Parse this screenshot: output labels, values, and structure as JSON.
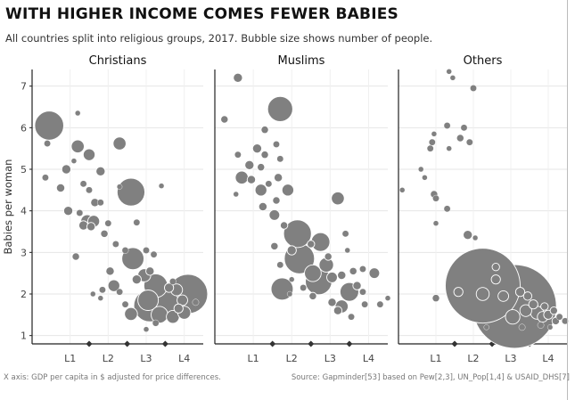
{
  "title": "WITH HIGHER INCOME COMES FEWER BABIES",
  "subtitle": "All countries split into religious groups, 2017. Bubble size shows number of people.",
  "footer": {
    "x_axis_note": "X axis: GDP per capita in $ adjusted for price differences.",
    "source": "Source: Gapminder[53] based on Pew[2,3], UN_Pop[1,4] & USAID_DHS[7]"
  },
  "colors": {
    "bubble": "#808080",
    "bubble_outline": "#ffffff",
    "grid": "#e6e6e6",
    "axis": "#222222",
    "marker": "#333333"
  },
  "chart_data": [
    {
      "type": "scatter",
      "panel": "Christians",
      "title": "Christians",
      "xlabel": "",
      "ylabel": "Babies per woman",
      "xlim": [
        0,
        4.5
      ],
      "ylim": [
        0.8,
        7.4
      ],
      "yticks": [
        1,
        2,
        3,
        4,
        5,
        6,
        7
      ],
      "xticks": [
        {
          "x": 1,
          "label": "L1"
        },
        {
          "x": 2,
          "label": "L2"
        },
        {
          "x": 3,
          "label": "L3"
        },
        {
          "x": 4,
          "label": "L4"
        }
      ],
      "level_markers": [
        1.5,
        2.5,
        3.5
      ],
      "grid": true,
      "points": [
        {
          "x": 0.45,
          "y": 6.05,
          "s": 60
        },
        {
          "x": 0.4,
          "y": 5.62,
          "s": 3
        },
        {
          "x": 1.2,
          "y": 6.35,
          "s": 2
        },
        {
          "x": 1.2,
          "y": 5.55,
          "s": 12
        },
        {
          "x": 1.5,
          "y": 5.35,
          "s": 10
        },
        {
          "x": 1.1,
          "y": 5.2,
          "s": 2
        },
        {
          "x": 2.3,
          "y": 5.62,
          "s": 12
        },
        {
          "x": 0.9,
          "y": 5.0,
          "s": 6
        },
        {
          "x": 1.8,
          "y": 4.95,
          "s": 6
        },
        {
          "x": 0.35,
          "y": 4.8,
          "s": 3
        },
        {
          "x": 0.75,
          "y": 4.55,
          "s": 5
        },
        {
          "x": 1.35,
          "y": 4.65,
          "s": 3
        },
        {
          "x": 1.5,
          "y": 4.5,
          "s": 3
        },
        {
          "x": 2.6,
          "y": 4.45,
          "s": 55
        },
        {
          "x": 2.3,
          "y": 4.58,
          "s": 2
        },
        {
          "x": 1.65,
          "y": 4.2,
          "s": 5
        },
        {
          "x": 1.8,
          "y": 4.2,
          "s": 3
        },
        {
          "x": 0.95,
          "y": 4.0,
          "s": 6
        },
        {
          "x": 1.45,
          "y": 3.75,
          "s": 12
        },
        {
          "x": 1.62,
          "y": 3.75,
          "s": 10
        },
        {
          "x": 1.35,
          "y": 3.65,
          "s": 6
        },
        {
          "x": 1.55,
          "y": 3.62,
          "s": 5
        },
        {
          "x": 2.0,
          "y": 3.7,
          "s": 3
        },
        {
          "x": 1.25,
          "y": 3.95,
          "s": 3
        },
        {
          "x": 2.75,
          "y": 3.72,
          "s": 3
        },
        {
          "x": 3.4,
          "y": 4.6,
          "s": 2
        },
        {
          "x": 1.15,
          "y": 2.9,
          "s": 4
        },
        {
          "x": 1.9,
          "y": 3.45,
          "s": 4
        },
        {
          "x": 2.2,
          "y": 3.2,
          "s": 3
        },
        {
          "x": 2.45,
          "y": 3.05,
          "s": 3
        },
        {
          "x": 2.65,
          "y": 2.85,
          "s": 35
        },
        {
          "x": 3.0,
          "y": 3.05,
          "s": 3
        },
        {
          "x": 3.2,
          "y": 2.95,
          "s": 3
        },
        {
          "x": 2.05,
          "y": 2.55,
          "s": 5
        },
        {
          "x": 2.15,
          "y": 2.2,
          "s": 10
        },
        {
          "x": 2.3,
          "y": 2.05,
          "s": 3
        },
        {
          "x": 1.85,
          "y": 2.1,
          "s": 3
        },
        {
          "x": 1.8,
          "y": 1.9,
          "s": 2
        },
        {
          "x": 2.75,
          "y": 2.35,
          "s": 6
        },
        {
          "x": 2.95,
          "y": 2.45,
          "s": 12
        },
        {
          "x": 3.1,
          "y": 2.55,
          "s": 5
        },
        {
          "x": 3.25,
          "y": 2.2,
          "s": 40
        },
        {
          "x": 3.05,
          "y": 1.85,
          "s": 30
        },
        {
          "x": 3.1,
          "y": 1.72,
          "s": 75
        },
        {
          "x": 3.5,
          "y": 1.8,
          "s": 50
        },
        {
          "x": 3.35,
          "y": 1.5,
          "s": 20
        },
        {
          "x": 3.7,
          "y": 1.45,
          "s": 12
        },
        {
          "x": 3.6,
          "y": 2.15,
          "s": 6
        },
        {
          "x": 3.8,
          "y": 2.1,
          "s": 10
        },
        {
          "x": 3.95,
          "y": 1.85,
          "s": 8
        },
        {
          "x": 4.0,
          "y": 1.55,
          "s": 12
        },
        {
          "x": 4.1,
          "y": 2.0,
          "s": 110
        },
        {
          "x": 3.85,
          "y": 1.65,
          "s": 6
        },
        {
          "x": 2.6,
          "y": 1.52,
          "s": 12
        },
        {
          "x": 3.25,
          "y": 1.3,
          "s": 3
        },
        {
          "x": 3.0,
          "y": 1.15,
          "s": 2
        },
        {
          "x": 4.3,
          "y": 1.8,
          "s": 3
        },
        {
          "x": 3.7,
          "y": 2.3,
          "s": 3
        },
        {
          "x": 2.45,
          "y": 1.75,
          "s": 3
        },
        {
          "x": 1.6,
          "y": 2.0,
          "s": 2
        }
      ]
    },
    {
      "type": "scatter",
      "panel": "Muslims",
      "title": "Muslims",
      "xlabel": "",
      "ylabel": "",
      "xlim": [
        0,
        4.5
      ],
      "ylim": [
        0.8,
        7.4
      ],
      "yticks": [
        1,
        2,
        3,
        4,
        5,
        6,
        7
      ],
      "xticks": [
        {
          "x": 1,
          "label": "L1"
        },
        {
          "x": 2,
          "label": "L2"
        },
        {
          "x": 3,
          "label": "L3"
        },
        {
          "x": 4,
          "label": "L4"
        }
      ],
      "level_markers": [
        1.5,
        2.5,
        3.5
      ],
      "grid": true,
      "points": [
        {
          "x": 0.6,
          "y": 7.2,
          "s": 6
        },
        {
          "x": 0.25,
          "y": 6.2,
          "s": 4
        },
        {
          "x": 1.7,
          "y": 6.45,
          "s": 45
        },
        {
          "x": 1.3,
          "y": 5.95,
          "s": 4
        },
        {
          "x": 1.6,
          "y": 5.6,
          "s": 3
        },
        {
          "x": 1.1,
          "y": 5.5,
          "s": 6
        },
        {
          "x": 1.3,
          "y": 5.35,
          "s": 4
        },
        {
          "x": 0.6,
          "y": 5.35,
          "s": 3
        },
        {
          "x": 1.7,
          "y": 5.25,
          "s": 3
        },
        {
          "x": 0.9,
          "y": 5.1,
          "s": 6
        },
        {
          "x": 1.2,
          "y": 5.05,
          "s": 4
        },
        {
          "x": 0.7,
          "y": 4.8,
          "s": 12
        },
        {
          "x": 0.95,
          "y": 4.75,
          "s": 5
        },
        {
          "x": 1.65,
          "y": 4.8,
          "s": 5
        },
        {
          "x": 1.4,
          "y": 4.65,
          "s": 3
        },
        {
          "x": 1.2,
          "y": 4.5,
          "s": 10
        },
        {
          "x": 1.9,
          "y": 4.5,
          "s": 10
        },
        {
          "x": 0.55,
          "y": 4.4,
          "s": 2
        },
        {
          "x": 1.6,
          "y": 4.25,
          "s": 4
        },
        {
          "x": 1.25,
          "y": 4.1,
          "s": 5
        },
        {
          "x": 1.55,
          "y": 3.9,
          "s": 8
        },
        {
          "x": 3.2,
          "y": 4.3,
          "s": 12
        },
        {
          "x": 1.8,
          "y": 3.65,
          "s": 4
        },
        {
          "x": 2.15,
          "y": 3.45,
          "s": 55
        },
        {
          "x": 1.55,
          "y": 3.15,
          "s": 4
        },
        {
          "x": 2.0,
          "y": 3.05,
          "s": 6
        },
        {
          "x": 2.2,
          "y": 2.85,
          "s": 65
        },
        {
          "x": 2.75,
          "y": 3.25,
          "s": 25
        },
        {
          "x": 2.5,
          "y": 3.2,
          "s": 4
        },
        {
          "x": 2.95,
          "y": 2.9,
          "s": 4
        },
        {
          "x": 3.4,
          "y": 3.45,
          "s": 3
        },
        {
          "x": 3.45,
          "y": 3.05,
          "s": 2
        },
        {
          "x": 2.9,
          "y": 2.7,
          "s": 15
        },
        {
          "x": 1.7,
          "y": 2.7,
          "s": 3
        },
        {
          "x": 2.55,
          "y": 2.5,
          "s": 20
        },
        {
          "x": 2.7,
          "y": 2.3,
          "s": 50
        },
        {
          "x": 3.05,
          "y": 2.4,
          "s": 8
        },
        {
          "x": 3.3,
          "y": 2.45,
          "s": 5
        },
        {
          "x": 3.6,
          "y": 2.55,
          "s": 4
        },
        {
          "x": 3.85,
          "y": 2.6,
          "s": 3
        },
        {
          "x": 4.15,
          "y": 2.5,
          "s": 8
        },
        {
          "x": 3.7,
          "y": 2.2,
          "s": 5
        },
        {
          "x": 1.75,
          "y": 2.12,
          "s": 35
        },
        {
          "x": 2.3,
          "y": 2.15,
          "s": 3
        },
        {
          "x": 2.55,
          "y": 1.95,
          "s": 4
        },
        {
          "x": 3.5,
          "y": 2.05,
          "s": 25
        },
        {
          "x": 3.85,
          "y": 2.05,
          "s": 3
        },
        {
          "x": 3.05,
          "y": 1.8,
          "s": 5
        },
        {
          "x": 3.3,
          "y": 1.7,
          "s": 12
        },
        {
          "x": 3.2,
          "y": 1.6,
          "s": 5
        },
        {
          "x": 3.9,
          "y": 1.75,
          "s": 3
        },
        {
          "x": 4.3,
          "y": 1.75,
          "s": 3
        },
        {
          "x": 4.5,
          "y": 1.9,
          "s": 2
        },
        {
          "x": 2.0,
          "y": 2.35,
          "s": 2
        },
        {
          "x": 1.95,
          "y": 2.0,
          "s": 2
        },
        {
          "x": 3.55,
          "y": 1.45,
          "s": 3
        }
      ]
    },
    {
      "type": "scatter",
      "panel": "Others",
      "title": "Others",
      "xlabel": "",
      "ylabel": "",
      "xlim": [
        0,
        4.5
      ],
      "ylim": [
        0.8,
        7.4
      ],
      "yticks": [
        1,
        2,
        3,
        4,
        5,
        6,
        7
      ],
      "xticks": [
        {
          "x": 1,
          "label": "L1"
        },
        {
          "x": 2,
          "label": "L2"
        },
        {
          "x": 3,
          "label": "L3"
        },
        {
          "x": 4,
          "label": "L4"
        }
      ],
      "level_markers": [
        1.5,
        2.5,
        3.5
      ],
      "grid": true,
      "points": [
        {
          "x": 1.35,
          "y": 7.35,
          "s": 2
        },
        {
          "x": 1.45,
          "y": 7.2,
          "s": 2
        },
        {
          "x": 2.0,
          "y": 6.95,
          "s": 3
        },
        {
          "x": 1.3,
          "y": 6.05,
          "s": 3
        },
        {
          "x": 0.95,
          "y": 5.85,
          "s": 2
        },
        {
          "x": 1.75,
          "y": 6.0,
          "s": 3
        },
        {
          "x": 0.9,
          "y": 5.65,
          "s": 3
        },
        {
          "x": 1.65,
          "y": 5.75,
          "s": 4
        },
        {
          "x": 1.9,
          "y": 5.65,
          "s": 3
        },
        {
          "x": 0.85,
          "y": 5.5,
          "s": 3
        },
        {
          "x": 1.35,
          "y": 5.5,
          "s": 2
        },
        {
          "x": 0.6,
          "y": 5.0,
          "s": 2
        },
        {
          "x": 0.7,
          "y": 4.8,
          "s": 2
        },
        {
          "x": 0.95,
          "y": 4.4,
          "s": 4
        },
        {
          "x": 1.0,
          "y": 4.3,
          "s": 3
        },
        {
          "x": 0.1,
          "y": 4.5,
          "s": 2
        },
        {
          "x": 1.3,
          "y": 4.05,
          "s": 3
        },
        {
          "x": 1.0,
          "y": 3.7,
          "s": 2
        },
        {
          "x": 1.85,
          "y": 3.42,
          "s": 6
        },
        {
          "x": 2.05,
          "y": 3.35,
          "s": 2
        },
        {
          "x": 2.6,
          "y": 2.65,
          "s": 4
        },
        {
          "x": 2.25,
          "y": 2.2,
          "s": 400
        },
        {
          "x": 1.6,
          "y": 2.05,
          "s": 6
        },
        {
          "x": 2.25,
          "y": 2.0,
          "s": 12
        },
        {
          "x": 2.6,
          "y": 2.35,
          "s": 6
        },
        {
          "x": 2.8,
          "y": 1.95,
          "s": 8
        },
        {
          "x": 3.1,
          "y": 1.7,
          "s": 500
        },
        {
          "x": 3.05,
          "y": 1.45,
          "s": 15
        },
        {
          "x": 3.25,
          "y": 2.05,
          "s": 6
        },
        {
          "x": 3.45,
          "y": 1.95,
          "s": 5
        },
        {
          "x": 3.4,
          "y": 1.6,
          "s": 10
        },
        {
          "x": 3.6,
          "y": 1.75,
          "s": 6
        },
        {
          "x": 3.7,
          "y": 1.55,
          "s": 12
        },
        {
          "x": 3.85,
          "y": 1.45,
          "s": 8
        },
        {
          "x": 3.9,
          "y": 1.7,
          "s": 4
        },
        {
          "x": 4.0,
          "y": 1.5,
          "s": 6
        },
        {
          "x": 4.15,
          "y": 1.6,
          "s": 4
        },
        {
          "x": 4.2,
          "y": 1.35,
          "s": 4
        },
        {
          "x": 4.3,
          "y": 1.45,
          "s": 3
        },
        {
          "x": 4.45,
          "y": 1.35,
          "s": 3
        },
        {
          "x": 3.8,
          "y": 1.25,
          "s": 3
        },
        {
          "x": 3.3,
          "y": 1.2,
          "s": 3
        },
        {
          "x": 2.35,
          "y": 1.2,
          "s": 2
        },
        {
          "x": 1.0,
          "y": 1.9,
          "s": 4
        },
        {
          "x": 4.05,
          "y": 1.2,
          "s": 2
        }
      ]
    }
  ]
}
